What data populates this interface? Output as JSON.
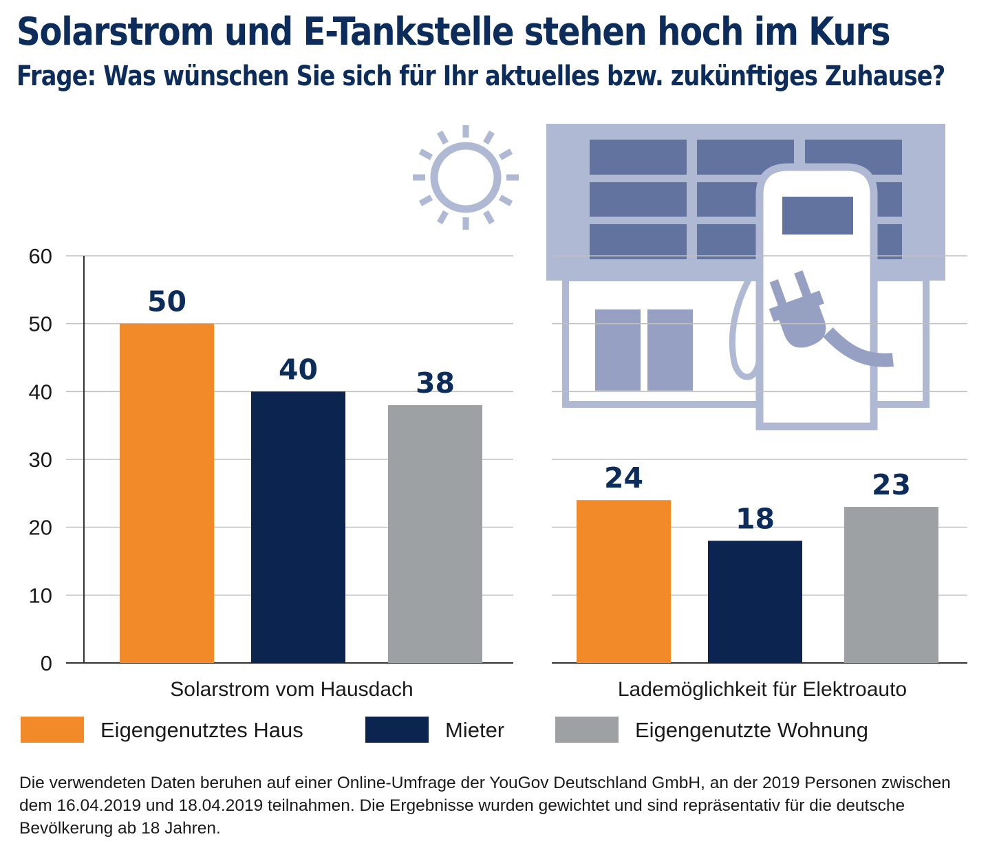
{
  "title": "Solarstrom und E-Tankstelle stehen hoch im Kurs",
  "subtitle": "Frage: Was wünschen Sie sich für Ihr aktuelles bzw. zukünftiges Zuhause?",
  "legend": [
    {
      "label": "Eigengenutztes Haus",
      "color": "#f28a2a"
    },
    {
      "label": "Mieter",
      "color": "#0b2550"
    },
    {
      "label": "Eigengenutzte Wohnung",
      "color": "#9ea1a4"
    }
  ],
  "note": "Die verwendeten Daten beruhen auf einer Online-Umfrage der YouGov Deutschland GmbH, an der 2019 Personen zwischen dem 16.04.2019 und 18.04.2019 teilnahmen. Die Ergebnisse wurden gewichtet und sind repräsentativ für die deutsche Bevölkerung ab 18 Jahren.",
  "icons": [
    "sun-icon",
    "house-with-solar-panels-icon",
    "charging-station-icon",
    "plug-icon"
  ],
  "colors": {
    "title": "#0c2d5c",
    "value_label": "#0c2d5c",
    "grid": "#bfbfbf",
    "icon_fill": "#b0b9d4",
    "icon_dark": "#63739f",
    "icon_mid": "#96a0c2"
  },
  "chart_data": {
    "type": "bar",
    "title": "Solarstrom und E-Tankstelle stehen hoch im Kurs",
    "subtitle": "Frage: Was wünschen Sie sich für Ihr aktuelles bzw. zukünftiges Zuhause?",
    "categories": [
      "Solarstrom vom Hausdach",
      "Lademöglichkeit für Elektroauto"
    ],
    "series": [
      {
        "name": "Eigengenutztes Haus",
        "values": [
          50,
          24
        ]
      },
      {
        "name": "Mieter",
        "values": [
          40,
          18
        ]
      },
      {
        "name": "Eigengenutzte Wohnung",
        "values": [
          38,
          23
        ]
      }
    ],
    "data_labels": [
      [
        "50",
        "40",
        "38"
      ],
      [
        "24",
        "18",
        "23"
      ]
    ],
    "ylim": [
      0,
      60
    ],
    "yticks": [
      0,
      10,
      20,
      30,
      40,
      50,
      60
    ],
    "xlabel": "",
    "ylabel": "",
    "grid": true,
    "legend_position": "bottom"
  }
}
